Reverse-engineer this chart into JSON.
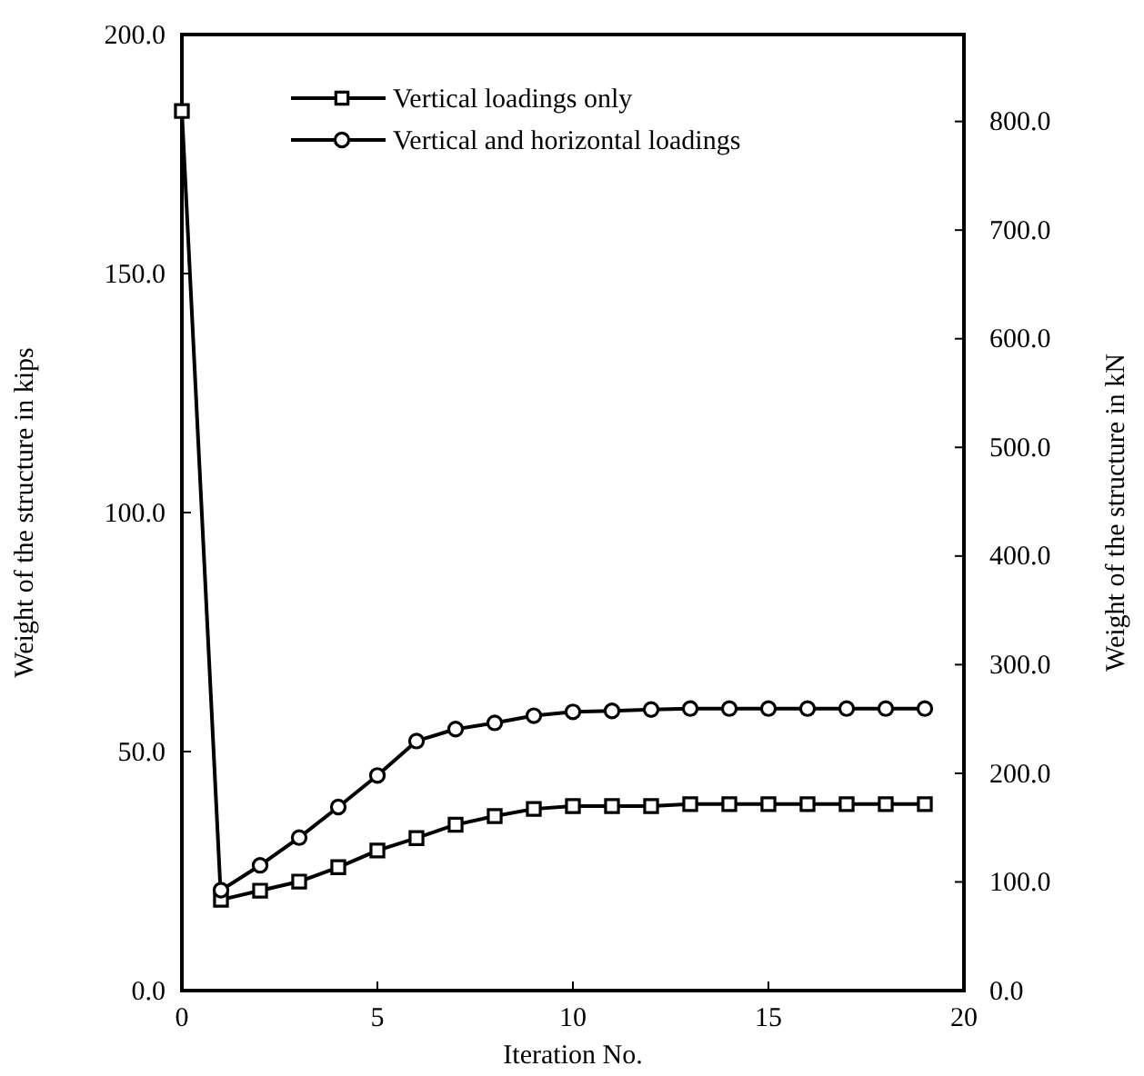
{
  "chart_data": {
    "type": "line",
    "xlabel": "Iteration No.",
    "ylabel": "Weight of the structure in kips",
    "y2label": "Weight of the structure in kN",
    "x": [
      0,
      1,
      2,
      3,
      4,
      5,
      6,
      7,
      8,
      9,
      10,
      11,
      12,
      13,
      14,
      15,
      16,
      17,
      18,
      19
    ],
    "series": [
      {
        "name": "Vertical loadings only",
        "color": "#000000",
        "marker": "square",
        "values": [
          184,
          19,
          20.9,
          22.8,
          25.8,
          29.3,
          31.9,
          34.7,
          36.5,
          38,
          38.6,
          38.6,
          38.6,
          39,
          39,
          39,
          39,
          39,
          39,
          39
        ]
      },
      {
        "name": "Vertical and horizontal loadings",
        "color": "#000000",
        "marker": "circle",
        "values": [
          null,
          21,
          26.2,
          32,
          38.4,
          45,
          52.2,
          54.7,
          56,
          57.5,
          58.3,
          58.5,
          58.8,
          59,
          59,
          59,
          59,
          59,
          59,
          59
        ]
      }
    ],
    "xlim": [
      0,
      20
    ],
    "xticks": [
      0,
      5,
      10,
      15,
      20
    ],
    "ylim": [
      0,
      200
    ],
    "yticks": [
      {
        "value": 0,
        "label": "0.0"
      },
      {
        "value": 50,
        "label": "50.0"
      },
      {
        "value": 100,
        "label": "100.0"
      },
      {
        "value": 150,
        "label": "150.0"
      },
      {
        "value": 200,
        "label": "200.0"
      }
    ],
    "y2lim": [
      0,
      880
    ],
    "y2ticks": [
      {
        "value": 0,
        "label": "0.0"
      },
      {
        "value": 100,
        "label": "100.0"
      },
      {
        "value": 200,
        "label": "200.0"
      },
      {
        "value": 300,
        "label": "300.0"
      },
      {
        "value": 400,
        "label": "400.0"
      },
      {
        "value": 500,
        "label": "500.0"
      },
      {
        "value": 600,
        "label": "600.0"
      },
      {
        "value": 700,
        "label": "700.0"
      },
      {
        "value": 800,
        "label": "800.0"
      }
    ],
    "grid": false,
    "legend": "top left",
    "line_style": "solid"
  }
}
